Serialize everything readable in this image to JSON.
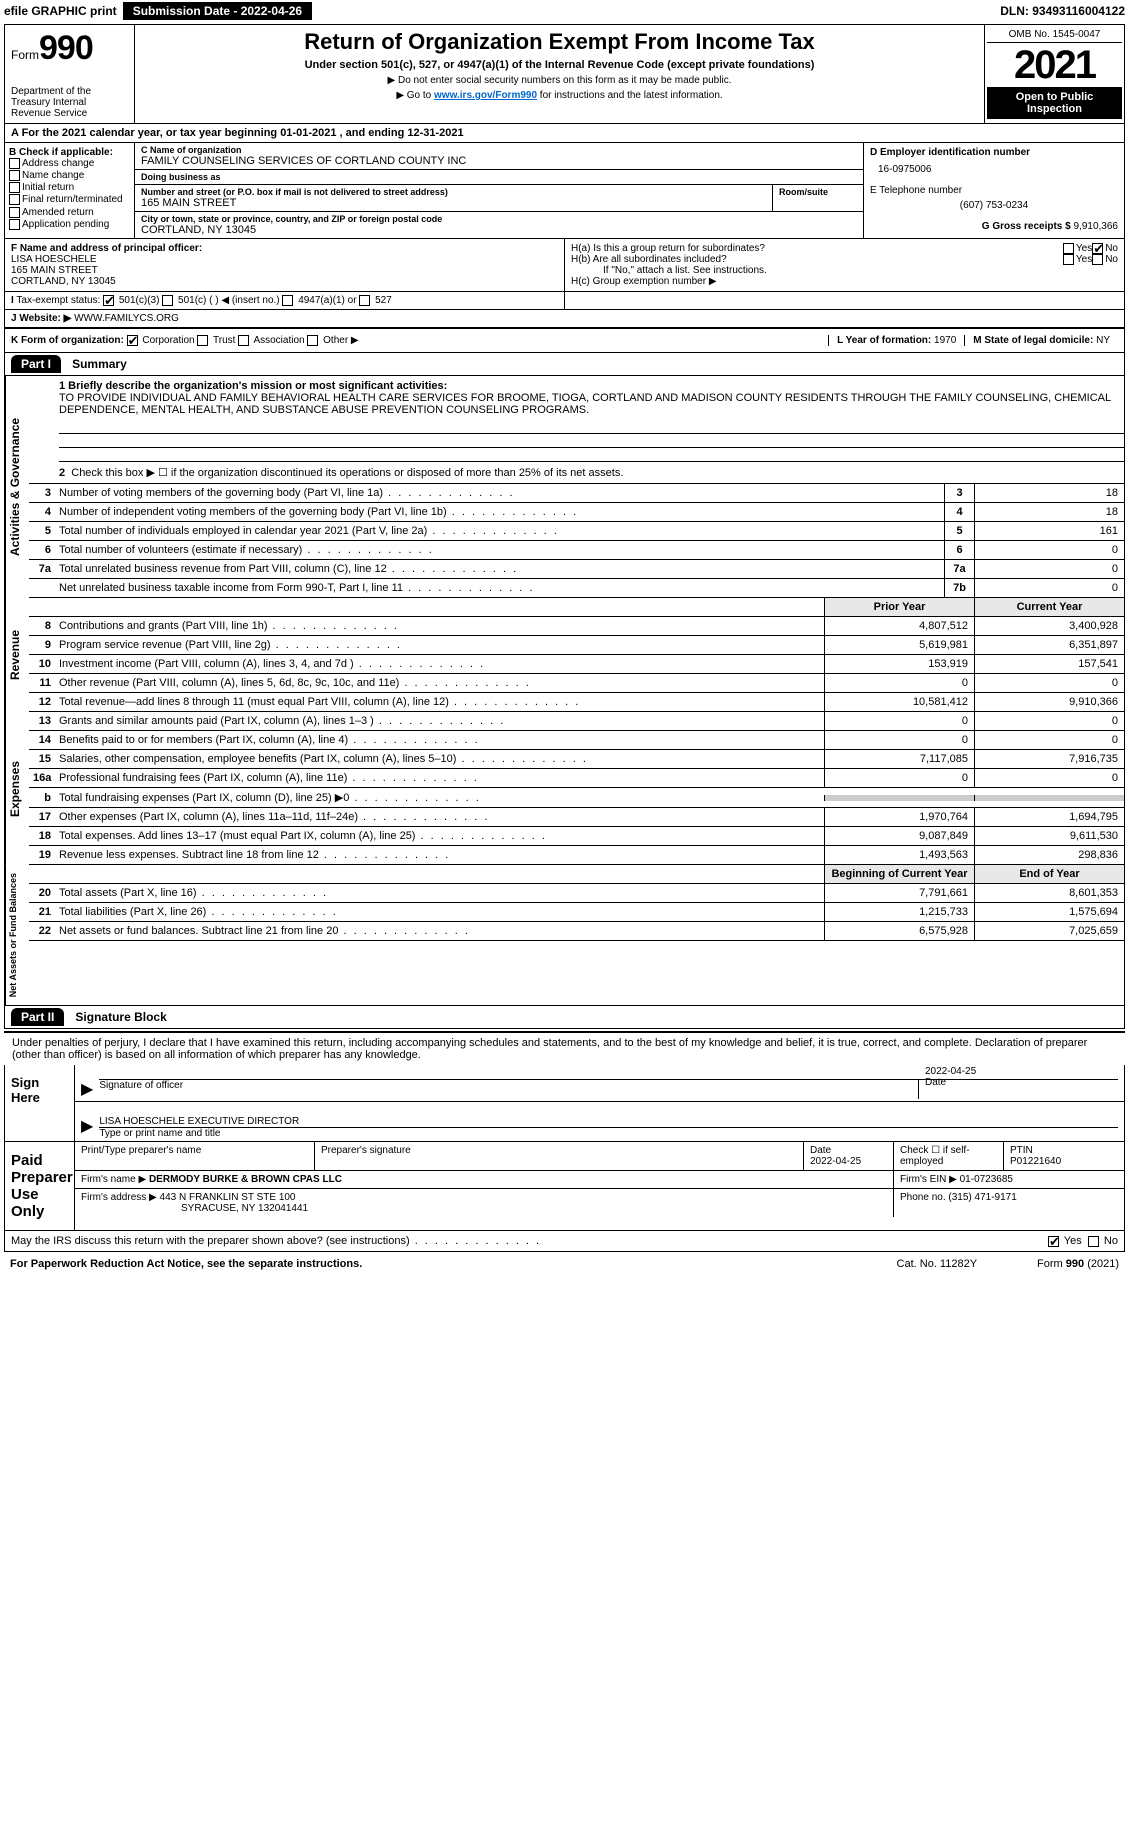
{
  "topbar": {
    "efile": "efile GRAPHIC print",
    "submission_label": "Submission Date - 2022-04-26",
    "dln": "DLN: 93493116004122"
  },
  "header": {
    "form_word": "Form",
    "form_number": "990",
    "dept": "Department of the Treasury Internal Revenue Service",
    "title": "Return of Organization Exempt From Income Tax",
    "subtitle": "Under section 501(c), 527, or 4947(a)(1) of the Internal Revenue Code (except private foundations)",
    "note1": "▶ Do not enter social security numbers on this form as it may be made public.",
    "note2": "▶ Go to www.irs.gov/Form990 for instructions and the latest information.",
    "link": "www.irs.gov/Form990",
    "omb": "OMB No. 1545-0047",
    "year": "2021",
    "open_public": "Open to Public Inspection"
  },
  "row_a": "A For the 2021 calendar year, or tax year beginning 01-01-2021    , and ending 12-31-2021",
  "check_b": {
    "label": "B Check if applicable:",
    "items": [
      "Address change",
      "Name change",
      "Initial return",
      "Final return/terminated",
      "Amended return",
      "Application pending"
    ]
  },
  "org": {
    "name_label": "C Name of organization",
    "name": "FAMILY COUNSELING SERVICES OF CORTLAND COUNTY INC",
    "dba_label": "Doing business as",
    "dba": "",
    "addr_label": "Number and street (or P.O. box if mail is not delivered to street address)",
    "room_label": "Room/suite",
    "addr": "165 MAIN STREET",
    "city_label": "City or town, state or province, country, and ZIP or foreign postal code",
    "city": "CORTLAND, NY  13045"
  },
  "right_col": {
    "ein_label": "D Employer identification number",
    "ein": "16-0975006",
    "phone_label": "E Telephone number",
    "phone": "(607) 753-0234",
    "gross_label": "G Gross receipts $",
    "gross": "9,910,366"
  },
  "f_block": {
    "label": "F Name and address of principal officer:",
    "name": "LISA HOESCHELE",
    "addr1": "165 MAIN STREET",
    "addr2": "CORTLAND, NY  13045"
  },
  "h_block": {
    "a": "H(a)  Is this a group return for subordinates?",
    "b": "H(b)  Are all subordinates included?",
    "b_note": "If \"No,\" attach a list. See instructions.",
    "c": "H(c)  Group exemption number ▶",
    "yes": "Yes",
    "no": "No"
  },
  "row_i": {
    "label": "Tax-exempt status:",
    "opts": [
      "501(c)(3)",
      "501(c) (  ) ◀ (insert no.)",
      "4947(a)(1) or",
      "527"
    ]
  },
  "row_j": {
    "label": "Website: ▶",
    "value": "WWW.FAMILYCS.ORG"
  },
  "row_k": {
    "label": "K Form of organization:",
    "opts": [
      "Corporation",
      "Trust",
      "Association",
      "Other ▶"
    ],
    "l_label": "L Year of formation:",
    "l_val": "1970",
    "m_label": "M State of legal domicile:",
    "m_val": "NY"
  },
  "part1": {
    "hdr": "Part I",
    "title": "Summary",
    "line1_label": "1 Briefly describe the organization's mission or most significant activities:",
    "line1_text": "TO PROVIDE INDIVIDUAL AND FAMILY BEHAVIORAL HEALTH CARE SERVICES FOR BROOME, TIOGA, CORTLAND AND MADISON COUNTY RESIDENTS THROUGH THE FAMILY COUNSELING, CHEMICAL DEPENDENCE, MENTAL HEALTH, AND SUBSTANCE ABUSE PREVENTION COUNSELING PROGRAMS.",
    "line2": "Check this box ▶ ☐ if the organization discontinued its operations or disposed of more than 25% of its net assets.",
    "sidelabel_ag": "Activities & Governance",
    "sidelabel_rev": "Revenue",
    "sidelabel_exp": "Expenses",
    "sidelabel_na": "Net Assets or Fund Balances",
    "gov_lines": [
      {
        "n": "3",
        "t": "Number of voting members of the governing body (Part VI, line 1a)",
        "c": "3",
        "v": "18"
      },
      {
        "n": "4",
        "t": "Number of independent voting members of the governing body (Part VI, line 1b)",
        "c": "4",
        "v": "18"
      },
      {
        "n": "5",
        "t": "Total number of individuals employed in calendar year 2021 (Part V, line 2a)",
        "c": "5",
        "v": "161"
      },
      {
        "n": "6",
        "t": "Total number of volunteers (estimate if necessary)",
        "c": "6",
        "v": "0"
      },
      {
        "n": "7a",
        "t": "Total unrelated business revenue from Part VIII, column (C), line 12",
        "c": "7a",
        "v": "0"
      },
      {
        "n": "",
        "t": "Net unrelated business taxable income from Form 990-T, Part I, line 11",
        "c": "7b",
        "v": "0"
      }
    ],
    "col_hdr_prior": "Prior Year",
    "col_hdr_curr": "Current Year",
    "rev_lines": [
      {
        "n": "8",
        "t": "Contributions and grants (Part VIII, line 1h)",
        "p": "4,807,512",
        "c": "3,400,928"
      },
      {
        "n": "9",
        "t": "Program service revenue (Part VIII, line 2g)",
        "p": "5,619,981",
        "c": "6,351,897"
      },
      {
        "n": "10",
        "t": "Investment income (Part VIII, column (A), lines 3, 4, and 7d )",
        "p": "153,919",
        "c": "157,541"
      },
      {
        "n": "11",
        "t": "Other revenue (Part VIII, column (A), lines 5, 6d, 8c, 9c, 10c, and 11e)",
        "p": "0",
        "c": "0"
      },
      {
        "n": "12",
        "t": "Total revenue—add lines 8 through 11 (must equal Part VIII, column (A), line 12)",
        "p": "10,581,412",
        "c": "9,910,366"
      }
    ],
    "exp_lines": [
      {
        "n": "13",
        "t": "Grants and similar amounts paid (Part IX, column (A), lines 1–3 )",
        "p": "0",
        "c": "0"
      },
      {
        "n": "14",
        "t": "Benefits paid to or for members (Part IX, column (A), line 4)",
        "p": "0",
        "c": "0"
      },
      {
        "n": "15",
        "t": "Salaries, other compensation, employee benefits (Part IX, column (A), lines 5–10)",
        "p": "7,117,085",
        "c": "7,916,735"
      },
      {
        "n": "16a",
        "t": "Professional fundraising fees (Part IX, column (A), line 11e)",
        "p": "0",
        "c": "0"
      },
      {
        "n": "b",
        "t": "Total fundraising expenses (Part IX, column (D), line 25) ▶0",
        "p": "",
        "c": "",
        "shaded": true
      },
      {
        "n": "17",
        "t": "Other expenses (Part IX, column (A), lines 11a–11d, 11f–24e)",
        "p": "1,970,764",
        "c": "1,694,795"
      },
      {
        "n": "18",
        "t": "Total expenses. Add lines 13–17 (must equal Part IX, column (A), line 25)",
        "p": "9,087,849",
        "c": "9,611,530"
      },
      {
        "n": "19",
        "t": "Revenue less expenses. Subtract line 18 from line 12",
        "p": "1,493,563",
        "c": "298,836"
      }
    ],
    "col_hdr_beg": "Beginning of Current Year",
    "col_hdr_end": "End of Year",
    "na_lines": [
      {
        "n": "20",
        "t": "Total assets (Part X, line 16)",
        "p": "7,791,661",
        "c": "8,601,353"
      },
      {
        "n": "21",
        "t": "Total liabilities (Part X, line 26)",
        "p": "1,215,733",
        "c": "1,575,694"
      },
      {
        "n": "22",
        "t": "Net assets or fund balances. Subtract line 21 from line 20",
        "p": "6,575,928",
        "c": "7,025,659"
      }
    ]
  },
  "part2": {
    "hdr": "Part II",
    "title": "Signature Block",
    "penalties": "Under penalties of perjury, I declare that I have examined this return, including accompanying schedules and statements, and to the best of my knowledge and belief, it is true, correct, and complete. Declaration of preparer (other than officer) is based on all information of which preparer has any knowledge."
  },
  "sign": {
    "label": "Sign Here",
    "sig_of_officer": "Signature of officer",
    "date": "2022-04-25",
    "date_label": "Date",
    "name": "LISA HOESCHELE  EXECUTIVE DIRECTOR",
    "name_label": "Type or print name and title"
  },
  "prep": {
    "label": "Paid Preparer Use Only",
    "h1": "Print/Type preparer's name",
    "h2": "Preparer's signature",
    "h3": "Date",
    "h3v": "2022-04-25",
    "h4": "Check ☐ if self-employed",
    "h5": "PTIN",
    "h5v": "P01221640",
    "firm_name_label": "Firm's name    ▶",
    "firm_name": "DERMODY BURKE & BROWN CPAS LLC",
    "firm_ein_label": "Firm's EIN ▶",
    "firm_ein": "01-0723685",
    "firm_addr_label": "Firm's address ▶",
    "firm_addr1": "443 N FRANKLIN ST STE 100",
    "firm_addr2": "SYRACUSE, NY  132041441",
    "phone_label": "Phone no.",
    "phone": "(315) 471-9171"
  },
  "may_irs": "May the IRS discuss this return with the preparer shown above? (see instructions)",
  "footer": {
    "left": "For Paperwork Reduction Act Notice, see the separate instructions.",
    "mid": "Cat. No. 11282Y",
    "right": "Form 990 (2021)"
  }
}
